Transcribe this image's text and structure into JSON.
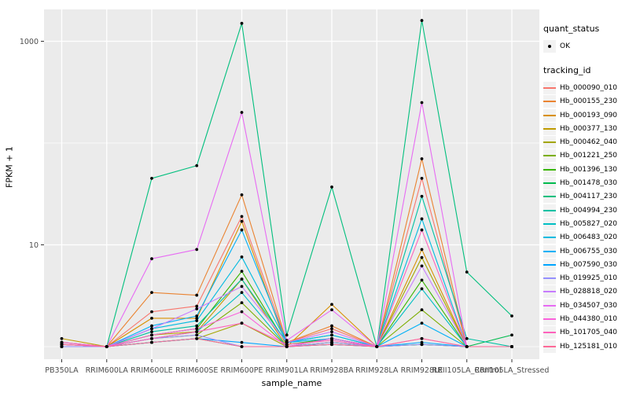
{
  "chart_data": {
    "type": "line",
    "title": "",
    "xlabel": "sample_name",
    "ylabel": "FPKM + 1",
    "y_scale": "log10",
    "y_ticks": [
      10,
      1000
    ],
    "y_minor_gridlines": [
      1,
      100
    ],
    "ylim": [
      0.9,
      2100
    ],
    "grid": "on",
    "legend_position": "right",
    "point_shape": "filled-circle",
    "categories": [
      "PB350LA",
      "RRIM600LA",
      "RRIM600LE",
      "RRIM600SE",
      "RRIM600PE",
      "RRIM901LA",
      "RRIM928BA",
      "RRIM928LA",
      "RRIM928LE",
      "RRII105LA_Control",
      "RRII105LA_Stressed"
    ],
    "series": [
      {
        "name": "Hb_000090_010",
        "color": "#F8766D",
        "values": [
          1.05,
          1,
          2.2,
          2.5,
          19,
          1.1,
          1.5,
          1,
          45,
          1,
          1
        ]
      },
      {
        "name": "Hb_000155_230",
        "color": "#EA8331",
        "values": [
          1.1,
          1,
          3.4,
          3.2,
          31,
          1.1,
          1.6,
          1,
          70,
          1,
          1
        ]
      },
      {
        "name": "Hb_000193_090",
        "color": "#D89000",
        "values": [
          1.05,
          1,
          1.9,
          1.9,
          17,
          1,
          2.6,
          1,
          9,
          1,
          1
        ]
      },
      {
        "name": "Hb_000377_130",
        "color": "#C09B00",
        "values": [
          1.2,
          1,
          1.3,
          1.4,
          4.6,
          1,
          1.2,
          1,
          1.05,
          1,
          1
        ]
      },
      {
        "name": "Hb_000462_040",
        "color": "#A3A500",
        "values": [
          1.05,
          1,
          1.1,
          1.2,
          1.7,
          1,
          1.1,
          1,
          7.5,
          1,
          1
        ]
      },
      {
        "name": "Hb_001221_250",
        "color": "#7CAE00",
        "values": [
          1,
          1,
          1.2,
          1.3,
          2.7,
          1,
          1.1,
          1,
          2.3,
          1,
          1
        ]
      },
      {
        "name": "Hb_001396_130",
        "color": "#39B600",
        "values": [
          1,
          1,
          1.3,
          1.5,
          5.5,
          1.05,
          1.2,
          1,
          4.5,
          1,
          1
        ]
      },
      {
        "name": "Hb_001478_030",
        "color": "#00BB4E",
        "values": [
          1,
          1,
          1.1,
          1.2,
          1,
          1,
          1.05,
          1,
          1.05,
          1,
          1.3
        ]
      },
      {
        "name": "Hb_004117_230",
        "color": "#00BF7D",
        "values": [
          1.1,
          1,
          45,
          60,
          1500,
          1.3,
          37,
          1,
          1600,
          5.4,
          2
        ]
      },
      {
        "name": "Hb_004994_230",
        "color": "#00C1A3",
        "values": [
          1,
          1,
          1.4,
          1.6,
          4.6,
          1.1,
          1.3,
          1,
          30,
          1.2,
          1
        ]
      },
      {
        "name": "Hb_005827_020",
        "color": "#00BFC4",
        "values": [
          1,
          1,
          1.2,
          1.4,
          3.4,
          1,
          1.2,
          1,
          3.7,
          1,
          1
        ]
      },
      {
        "name": "Hb_006483_020",
        "color": "#00BAE0",
        "values": [
          1.05,
          1,
          1.5,
          1.8,
          7.6,
          1.1,
          1.3,
          1,
          18,
          1,
          1
        ]
      },
      {
        "name": "Hb_006755_030",
        "color": "#00B0F6",
        "values": [
          1,
          1,
          1.6,
          2,
          14,
          1.1,
          1.2,
          1,
          1.7,
          1,
          1
        ]
      },
      {
        "name": "Hb_007590_030",
        "color": "#00A5FF",
        "values": [
          1,
          1,
          1.1,
          1.2,
          1.1,
          1,
          1.05,
          1,
          1.1,
          1,
          1
        ]
      },
      {
        "name": "Hb_019925_010",
        "color": "#9590FF",
        "values": [
          1,
          1,
          1.2,
          1.3,
          1,
          1,
          1.1,
          1,
          1.05,
          1,
          1
        ]
      },
      {
        "name": "Hb_028818_020",
        "color": "#C77CFF",
        "values": [
          1.05,
          1,
          1.5,
          2.35,
          3.9,
          1.1,
          1.4,
          1,
          6.2,
          1,
          1
        ]
      },
      {
        "name": "Hb_034507_030",
        "color": "#E76BF3",
        "values": [
          1.1,
          1,
          7.3,
          9,
          200,
          1.15,
          2.3,
          1,
          250,
          1,
          1
        ]
      },
      {
        "name": "Hb_044380_010",
        "color": "#FA62DB",
        "values": [
          1.05,
          1,
          1.3,
          1.5,
          2.2,
          1,
          1.2,
          1,
          1.2,
          1,
          1
        ]
      },
      {
        "name": "Hb_101705_040",
        "color": "#FF62BC",
        "values": [
          1.1,
          1,
          1.2,
          1.4,
          1.7,
          1.05,
          1.15,
          1,
          14,
          1,
          1
        ]
      },
      {
        "name": "Hb_125181_010",
        "color": "#FF6A98",
        "values": [
          1.05,
          1,
          1.1,
          1.2,
          1,
          1,
          1.05,
          1,
          1.2,
          1,
          1
        ]
      }
    ]
  },
  "legend": {
    "quant_status_title": "quant_status",
    "quant_status_value": "OK",
    "tracking_id_title": "tracking_id"
  },
  "colors": {
    "panel_bg": "#EBEBEB",
    "grid": "#FFFFFF",
    "tick_label": "#4D4D4D",
    "tick_mark": "#333333",
    "point": "#000000",
    "legend_key_bg": "#F2F2F2"
  }
}
